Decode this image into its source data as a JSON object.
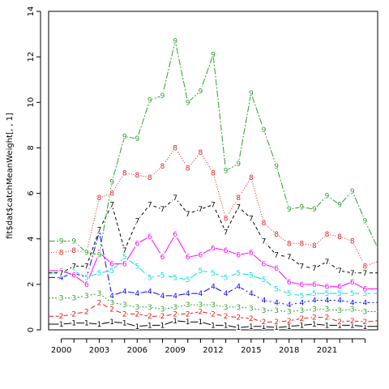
{
  "chart_data": {
    "type": "line",
    "title": "",
    "xlabel": "",
    "ylabel": "fit$dat$catchMeanWeight[, , 1]",
    "xlim": [
      1999,
      2025
    ],
    "ylim": [
      0,
      14
    ],
    "x_ticks": [
      2000,
      2003,
      2006,
      2009,
      2012,
      2015,
      2018,
      2021
    ],
    "x_minor_ticks": [
      2000,
      2001,
      2002,
      2003,
      2004,
      2005,
      2006,
      2007,
      2008,
      2009,
      2010,
      2011,
      2012,
      2013,
      2014,
      2015,
      2016,
      2017,
      2018,
      2019,
      2020,
      2021,
      2022,
      2023,
      2024
    ],
    "y_ticks": [
      0,
      2,
      4,
      6,
      8,
      10,
      12,
      14
    ],
    "grid": false,
    "legend": "none",
    "marker_years": [
      2000,
      2001,
      2002,
      2003,
      2004,
      2005,
      2006,
      2007,
      2008,
      2009,
      2010,
      2011,
      2012,
      2013,
      2014,
      2015,
      2016,
      2017,
      2018,
      2019,
      2020,
      2021,
      2022,
      2023,
      2024
    ],
    "line_years": [
      1999,
      2000,
      2001,
      2002,
      2003,
      2004,
      2005,
      2006,
      2007,
      2008,
      2009,
      2010,
      2011,
      2012,
      2013,
      2014,
      2015,
      2016,
      2017,
      2018,
      2019,
      2020,
      2021,
      2022,
      2023,
      2024,
      2025
    ],
    "series": [
      {
        "marker": "1",
        "color": "#000000",
        "dash": "",
        "values": [
          0.25,
          0.25,
          0.3,
          0.3,
          0.25,
          0.35,
          0.3,
          0.15,
          0.2,
          0.2,
          0.4,
          0.35,
          0.35,
          0.2,
          0.2,
          0.1,
          0.15,
          0.15,
          0.1,
          0.15,
          0.2,
          0.25,
          0.2,
          0.2,
          0.2,
          0.15,
          0.15
        ]
      },
      {
        "marker": "2",
        "color": "#e41a1c",
        "dash": "6,3",
        "values": [
          0.6,
          0.6,
          0.7,
          0.8,
          1.2,
          0.9,
          0.7,
          0.7,
          0.6,
          0.6,
          0.7,
          0.7,
          0.8,
          0.7,
          0.6,
          0.55,
          0.5,
          0.35,
          0.35,
          0.4,
          0.5,
          0.55,
          0.55,
          0.35,
          0.4,
          0.35,
          0.4
        ]
      },
      {
        "marker": "3",
        "color": "#2ca02c",
        "dash": "2,2",
        "values": [
          1.4,
          1.4,
          1.4,
          1.5,
          1.6,
          1.2,
          1.1,
          1.0,
          1.0,
          0.9,
          1.0,
          1.1,
          1.1,
          1.1,
          1.0,
          1.0,
          0.95,
          0.85,
          0.85,
          0.8,
          0.85,
          0.9,
          0.9,
          0.85,
          0.9,
          0.8,
          0.8
        ]
      },
      {
        "marker": "4",
        "color": "#0000ff",
        "dash": "8,3,2,3",
        "values": [
          2.3,
          2.3,
          2.5,
          2.3,
          4.3,
          1.5,
          1.7,
          1.6,
          1.7,
          1.5,
          1.5,
          1.6,
          1.6,
          1.9,
          1.6,
          1.9,
          1.6,
          1.3,
          1.2,
          1.1,
          1.2,
          1.3,
          1.3,
          1.3,
          1.2,
          1.2,
          1.2
        ]
      },
      {
        "marker": "5",
        "color": "#00e0e0",
        "dash": "10,4",
        "values": [
          2.5,
          2.5,
          2.6,
          2.3,
          2.5,
          2.6,
          3.2,
          2.8,
          2.3,
          2.4,
          2.3,
          2.2,
          2.6,
          2.5,
          2.3,
          2.5,
          2.4,
          2.2,
          1.8,
          1.6,
          1.5,
          1.6,
          1.6,
          1.6,
          1.6,
          1.6,
          1.6
        ]
      },
      {
        "marker": "6",
        "color": "#ff00ff",
        "dash": "",
        "values": [
          2.6,
          2.6,
          2.4,
          2.0,
          3.4,
          2.9,
          2.9,
          3.8,
          4.1,
          3.2,
          4.2,
          3.2,
          3.3,
          3.6,
          3.5,
          3.3,
          3.4,
          2.9,
          2.7,
          2.1,
          2.0,
          2.0,
          1.9,
          1.9,
          2.1,
          1.8,
          1.8
        ]
      },
      {
        "marker": "7",
        "color": "#000000",
        "dash": "4,3",
        "values": [
          2.5,
          2.5,
          2.8,
          2.8,
          4.4,
          5.5,
          3.5,
          4.8,
          5.5,
          5.3,
          5.8,
          5.1,
          5.3,
          5.5,
          4.3,
          5.4,
          4.9,
          3.9,
          3.3,
          3.2,
          2.8,
          2.7,
          3.0,
          2.6,
          2.5,
          2.5,
          2.5
        ]
      },
      {
        "marker": "8",
        "color": "#e41a1c",
        "dash": "1,2",
        "values": [
          3.4,
          3.4,
          3.5,
          3.4,
          5.8,
          6.0,
          6.9,
          6.8,
          6.7,
          7.2,
          8.0,
          7.1,
          7.8,
          6.9,
          4.9,
          5.8,
          6.7,
          4.7,
          4.2,
          3.8,
          3.8,
          3.7,
          4.2,
          4.1,
          3.9,
          2.8,
          3.0
        ]
      },
      {
        "marker": "9",
        "color": "#2ca02c",
        "dash": "8,2,2,2",
        "values": [
          3.9,
          3.9,
          3.9,
          3.4,
          3.3,
          6.5,
          8.5,
          8.4,
          10.1,
          10.3,
          12.7,
          10.0,
          10.5,
          12.1,
          7.0,
          7.3,
          10.4,
          8.8,
          7.2,
          5.3,
          5.4,
          5.3,
          5.9,
          5.5,
          6.1,
          4.8,
          3.6
        ]
      }
    ]
  }
}
